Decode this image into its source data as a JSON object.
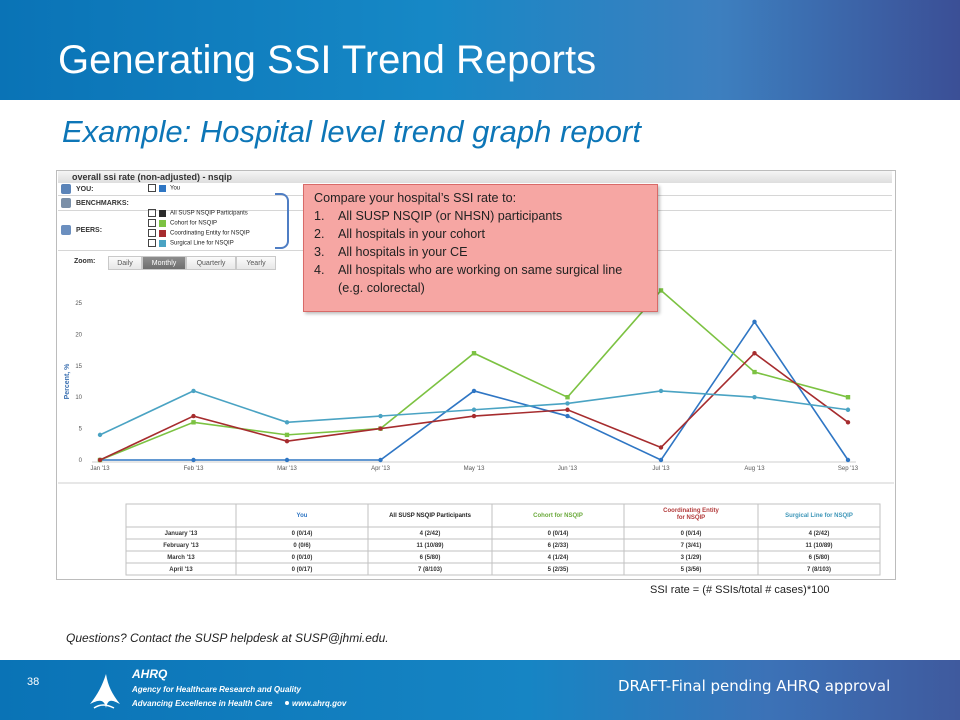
{
  "slide": {
    "title": "Generating SSI Trend Reports",
    "subtitle": "Example: Hospital level trend graph report",
    "formula": "SSI rate = (# SSIs/total # cases)*100",
    "questions": "Questions? Contact the SUSP helpdesk at SUSP@jhmi.edu.",
    "page_number": "38",
    "draft_note": "DRAFT-Final pending AHRQ approval",
    "footer_logo": {
      "agency": "Agency for Healthcare Research and Quality",
      "tagline": "Advancing Excellence in Health Care",
      "url": "www.ahrq.gov",
      "mark": "AHRQ"
    }
  },
  "report": {
    "title": "overall ssi rate (non-adjusted) - nsqip",
    "rows": {
      "you": "YOU:",
      "benchmarks": "BENCHMARKS:",
      "peers": "PEERS:"
    },
    "zoom": {
      "label": "Zoom:",
      "options": [
        "Daily",
        "Monthly",
        "Quarterly",
        "Yearly"
      ],
      "selected": "Monthly"
    }
  },
  "callout": {
    "heading": "Compare your hospital’s SSI rate to:",
    "items": [
      "All SUSP NSQIP (or NHSN) participants",
      "All hospitals in your cohort",
      "All hospitals in your CE",
      "All hospitals who are working on same surgical line (e.g. colorectal)"
    ]
  },
  "colors": {
    "you": "#2f76c4",
    "all_susp": "#2b2b2b",
    "cohort": "#7cc242",
    "coordinating": "#a62c2e",
    "surgical_line": "#4aa3c3"
  },
  "chart_data": {
    "type": "line",
    "title": "overall ssi rate (non-adjusted) - nsqip",
    "ylabel": "Percent, %",
    "xlabel": "",
    "categories": [
      "Jan '13",
      "Feb '13",
      "Mar '13",
      "Apr '13",
      "May '13",
      "Jun '13",
      "Jul '13",
      "Aug '13",
      "Sep '13"
    ],
    "ylim": [
      0,
      25
    ],
    "yticks": [
      0,
      5,
      10,
      15,
      20,
      25
    ],
    "grid": false,
    "legend": [
      "You",
      "All SUSP NSQIP Participants",
      "Cohort for NSQIP",
      "Coordinating Entity for NSQIP",
      "Surgical Line for NSQIP"
    ],
    "series": [
      {
        "name": "You",
        "color": "#2f76c4",
        "values": [
          0,
          0,
          0,
          0,
          11,
          7,
          0,
          22,
          0
        ]
      },
      {
        "name": "Cohort for NSQIP",
        "color": "#7cc242",
        "values": [
          0,
          6,
          4,
          5,
          17,
          10,
          27,
          14,
          10
        ]
      },
      {
        "name": "Coordinating Entity for NSQIP",
        "color": "#a62c2e",
        "values": [
          0,
          7,
          3,
          5,
          7,
          8,
          2,
          17,
          6
        ]
      },
      {
        "name": "Surgical Line for NSQIP",
        "color": "#4aa3c3",
        "values": [
          4,
          11,
          6,
          7,
          8,
          9,
          11,
          10,
          8
        ]
      }
    ]
  },
  "table": {
    "headers": [
      "",
      "You",
      "All SUSP NSQIP Participants",
      "Cohort for NSQIP",
      "Coordinating Entity for NSQIP",
      "Surgical Line for NSQIP"
    ],
    "header_colors": [
      "#333333",
      "#2f76c4",
      "#222222",
      "#6aa93a",
      "#b23a3a",
      "#3d96b8"
    ],
    "rows": [
      [
        "January '13",
        "0 (0/14)",
        "4 (2/42)",
        "0 (0/14)",
        "0 (0/14)",
        "4 (2/42)"
      ],
      [
        "February '13",
        "0 (0/6)",
        "11 (10/89)",
        "6 (2/33)",
        "7 (3/41)",
        "11 (10/89)"
      ],
      [
        "March '13",
        "0 (0/10)",
        "6 (5/80)",
        "4 (1/24)",
        "3 (1/29)",
        "6 (5/80)"
      ],
      [
        "April '13",
        "0 (0/17)",
        "7 (8/103)",
        "5 (2/35)",
        "5 (3/56)",
        "7 (8/103)"
      ]
    ]
  }
}
